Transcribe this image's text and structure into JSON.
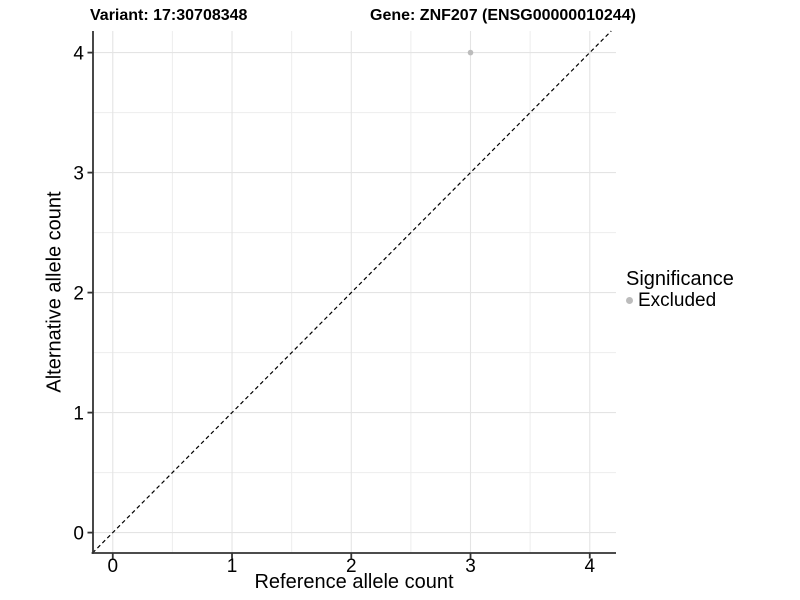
{
  "header": {
    "variant_title": "Variant: 17:30708348",
    "gene_title": "Gene: ZNF207 (ENSG00000010244)"
  },
  "chart_data": {
    "type": "scatter",
    "xlabel": "Reference allele count",
    "ylabel": "Alternative allele count",
    "x_ticks": [
      0,
      1,
      2,
      3,
      4
    ],
    "y_ticks": [
      0,
      1,
      2,
      3,
      4
    ],
    "xlim": [
      -0.17,
      4.22
    ],
    "ylim": [
      -0.17,
      4.18
    ],
    "minor_ticks": [
      0.5,
      1.5,
      2.5,
      3.5
    ],
    "grid": true,
    "series": [
      {
        "name": "Excluded",
        "color": "#bcbcbc",
        "points": [
          {
            "x": 3,
            "y": 4
          }
        ]
      }
    ],
    "reference_line": {
      "type": "identity",
      "slope": 1,
      "intercept": 0,
      "style": "dashed",
      "color": "#000000"
    }
  },
  "legend": {
    "title": "Significance",
    "position": "right",
    "items": [
      {
        "label": "Excluded",
        "color": "#bcbcbc",
        "marker": "circle"
      }
    ]
  },
  "colors": {
    "background": "#ffffff",
    "grid_major": "#e4e4e4",
    "grid_minor": "#ededed",
    "axis_line": "#333333",
    "text": "#000000"
  }
}
